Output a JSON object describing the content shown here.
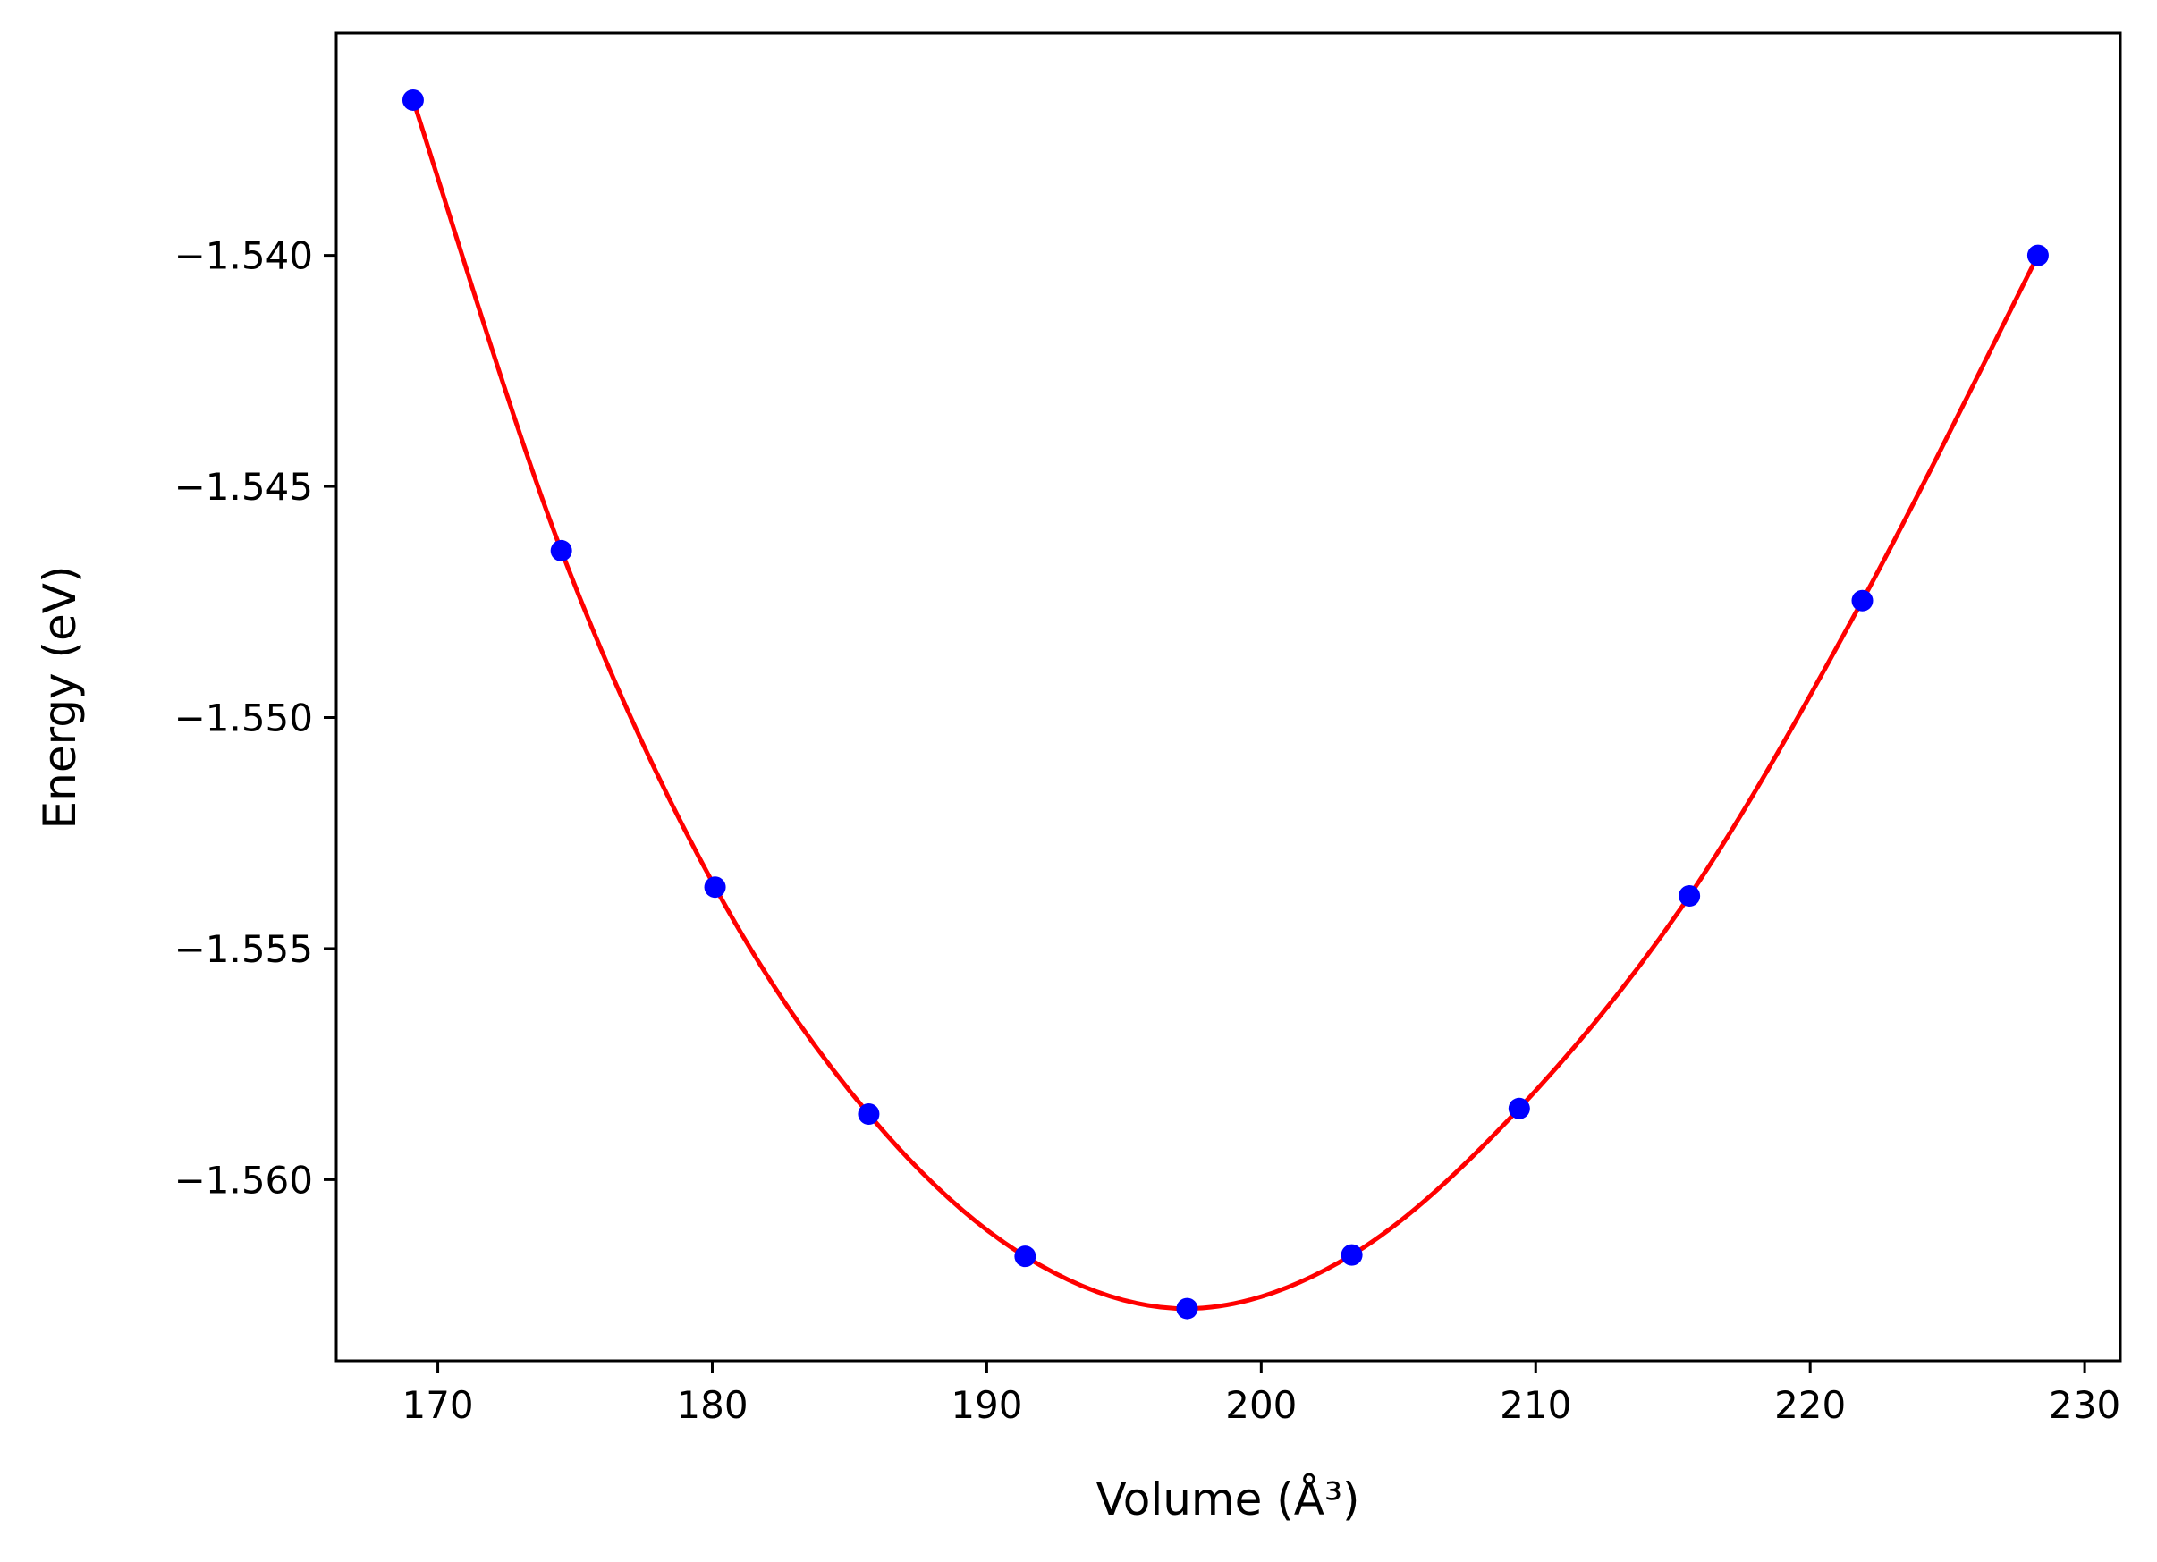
{
  "chart_data": {
    "type": "scatter",
    "title": "",
    "xlabel": "Volume (Å³)",
    "ylabel": "Energy (eV)",
    "xlim": [
      166.3,
      231.3
    ],
    "ylim": [
      -1.56392,
      -1.53519
    ],
    "xticks": [
      170,
      180,
      190,
      200,
      210,
      220,
      230
    ],
    "yticks": [
      -1.54,
      -1.545,
      -1.55,
      -1.555,
      -1.56
    ],
    "xtick_labels": [
      "170",
      "180",
      "190",
      "200",
      "210",
      "220",
      "230"
    ],
    "ytick_labels": [
      "−1.540",
      "−1.545",
      "−1.550",
      "−1.555",
      "−1.560"
    ],
    "grid": false,
    "series": [
      {
        "kind": "points",
        "color": "#0000ff",
        "x": [
          169.1,
          174.5,
          180.1,
          185.7,
          191.4,
          197.3,
          203.3,
          209.4,
          215.6,
          221.9,
          228.3
        ],
        "y": [
          -1.53664,
          -1.54639,
          -1.55367,
          -1.55858,
          -1.56166,
          -1.56279,
          -1.56163,
          -1.55846,
          -1.55386,
          -1.54747,
          -1.54
        ]
      },
      {
        "kind": "fit",
        "color": "#ff0000",
        "x": [
          169.1,
          174.5,
          180.1,
          185.7,
          191.4,
          197.3,
          203.3,
          209.4,
          215.6,
          221.9,
          228.3
        ],
        "y": [
          -1.53664,
          -1.54639,
          -1.55367,
          -1.55858,
          -1.56166,
          -1.56279,
          -1.56163,
          -1.55846,
          -1.55386,
          -1.54747,
          -1.54
        ]
      }
    ]
  }
}
